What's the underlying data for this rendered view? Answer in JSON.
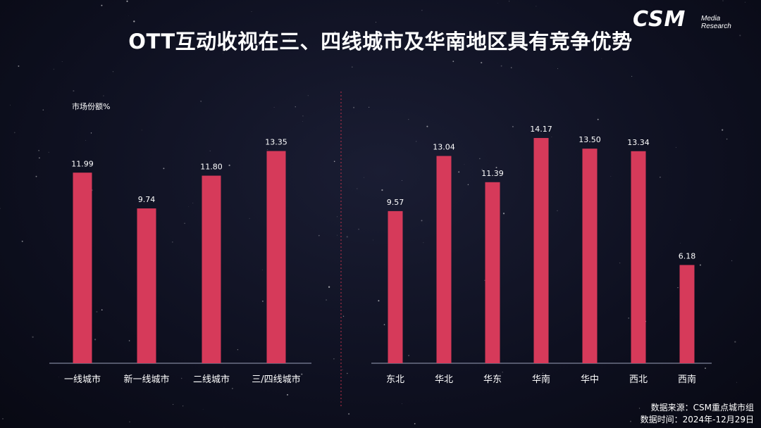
{
  "title": "OTT互动收视在三、四线城市及华南地区具有竞争优势",
  "logo": {
    "main": "CSM",
    "line1": "Media",
    "line2": "Research"
  },
  "ylabel": "市场份额%",
  "footer": {
    "source": "数据来源：CSM重点城市组",
    "time": "数据时间：2024年-12月29日"
  },
  "colors": {
    "bar": "#d63a5a",
    "axis": "#9aa0b8",
    "divider": "#c0304a"
  },
  "chart_data": [
    {
      "type": "bar",
      "ylabel": "市场份额%",
      "categories": [
        "一线城市",
        "新一线城市",
        "二线城市",
        "三/四线城市"
      ],
      "values": [
        11.99,
        9.74,
        11.8,
        13.35
      ],
      "labels": [
        "11.99",
        "9.74",
        "11.80",
        "13.35"
      ],
      "ylim": [
        0,
        15.5
      ],
      "grid": false
    },
    {
      "type": "bar",
      "categories": [
        "东北",
        "华北",
        "华东",
        "华南",
        "华中",
        "西北",
        "西南"
      ],
      "values": [
        9.57,
        13.04,
        11.39,
        14.17,
        13.5,
        13.34,
        6.18
      ],
      "labels": [
        "9.57",
        "13.04",
        "11.39",
        "14.17",
        "13.50",
        "13.34",
        "6.18"
      ],
      "ylim": [
        0,
        15.5
      ],
      "grid": false
    }
  ]
}
